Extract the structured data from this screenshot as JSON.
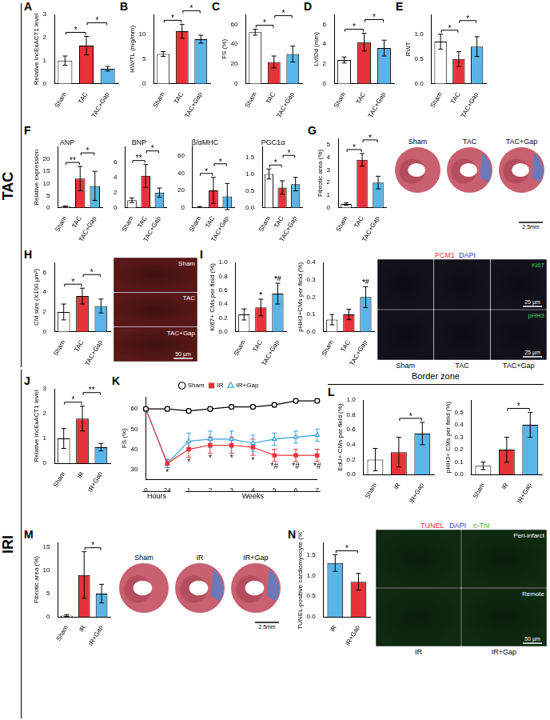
{
  "side_labels": [
    "TAC",
    "IRI"
  ],
  "group_labels": [
    "Border zone"
  ],
  "chart_data": [
    {
      "type": "bar",
      "panel": "A",
      "ylabel": "Relative lncExACT1 level",
      "categories": [
        "Sham",
        "TAC",
        "TAC+Gap"
      ],
      "values": [
        1.0,
        1.65,
        0.65
      ],
      "errors": [
        0.2,
        0.4,
        0.1
      ],
      "colors": [
        "#ffffff",
        "#e8323a",
        "#5ab4e6"
      ],
      "ylim": [
        0,
        3
      ],
      "yticks": [
        0,
        1,
        2,
        3
      ],
      "grid": false,
      "significance": [
        {
          "from": 0,
          "to": 1,
          "label": "*"
        },
        {
          "from": 1,
          "to": 2,
          "label": "*"
        }
      ]
    },
    {
      "type": "bar",
      "panel": "B",
      "ylabel": "HW/TL (mg/mm)",
      "categories": [
        "Sham",
        "TAC",
        "TAC+Gap"
      ],
      "values": [
        6.0,
        10.6,
        9.0
      ],
      "errors": [
        0.5,
        1.4,
        0.8
      ],
      "colors": [
        "#ffffff",
        "#e8323a",
        "#5ab4e6"
      ],
      "ylim": [
        0,
        14
      ],
      "yticks": [
        0,
        5,
        10
      ],
      "grid": false,
      "significance": [
        {
          "from": 0,
          "to": 1,
          "label": "*"
        },
        {
          "from": 1,
          "to": 2,
          "label": "*"
        }
      ]
    },
    {
      "type": "bar",
      "panel": "C",
      "ylabel": "FS (%)",
      "categories": [
        "Sham",
        "TAC",
        "TAC+Gap"
      ],
      "values": [
        52,
        22,
        30
      ],
      "errors": [
        3,
        6,
        8
      ],
      "colors": [
        "#ffffff",
        "#e8323a",
        "#5ab4e6"
      ],
      "ylim": [
        0,
        70
      ],
      "yticks": [
        0,
        20,
        40,
        60
      ],
      "grid": false,
      "significance": [
        {
          "from": 0,
          "to": 1,
          "label": "*"
        },
        {
          "from": 1,
          "to": 2,
          "label": "*"
        }
      ]
    },
    {
      "type": "bar",
      "panel": "D",
      "ylabel": "LVIDd (mm)",
      "categories": [
        "Sham",
        "TAC",
        "TAC+Gap"
      ],
      "values": [
        2.4,
        4.2,
        3.6
      ],
      "errors": [
        0.3,
        0.9,
        0.8
      ],
      "colors": [
        "#ffffff",
        "#e8323a",
        "#5ab4e6"
      ],
      "ylim": [
        0,
        7
      ],
      "yticks": [
        0,
        2,
        4,
        6
      ],
      "grid": false,
      "significance": [
        {
          "from": 0,
          "to": 1,
          "label": "*"
        },
        {
          "from": 1,
          "to": 2,
          "label": "*"
        }
      ]
    },
    {
      "type": "bar",
      "panel": "E",
      "ylabel": "RWT",
      "categories": [
        "Sham",
        "TAC",
        "TAC+Gap"
      ],
      "values": [
        0.85,
        0.5,
        0.75
      ],
      "errors": [
        0.15,
        0.15,
        0.2
      ],
      "colors": [
        "#ffffff",
        "#e8323a",
        "#5ab4e6"
      ],
      "ylim": [
        0,
        1.4
      ],
      "yticks": [
        {
          "value": 0,
          "label": "0.0"
        },
        0.5,
        {
          "value": 1,
          "label": "1.0"
        }
      ],
      "grid": false,
      "significance": [
        {
          "from": 0,
          "to": 1,
          "label": "*"
        },
        {
          "from": 1,
          "to": 2,
          "label": "*"
        }
      ]
    },
    {
      "type": "bar",
      "panel": "F",
      "title": "ANP",
      "ylabel": "Relative expression",
      "categories": [
        "Sham",
        "TAC",
        "TAC+Gap"
      ],
      "values": [
        0.5,
        12,
        9
      ],
      "errors": [
        0.3,
        5,
        6
      ],
      "colors": [
        "#ffffff",
        "#e8323a",
        "#5ab4e6"
      ],
      "ylim": [
        0,
        25
      ],
      "yticks": [
        0,
        5,
        10,
        15,
        20
      ],
      "grid": false,
      "significance": [
        {
          "from": 0,
          "to": 1,
          "label": "**"
        },
        {
          "from": 1,
          "to": 2,
          "label": "*"
        }
      ]
    },
    {
      "type": "bar",
      "title": "BNP",
      "categories": [
        "Sham",
        "TAC",
        "TAC+Gap"
      ],
      "values": [
        1.0,
        4.2,
        2.0
      ],
      "errors": [
        0.3,
        1.5,
        0.6
      ],
      "colors": [
        "#ffffff",
        "#e8323a",
        "#5ab4e6"
      ],
      "ylim": [
        0,
        8
      ],
      "yticks": [
        0,
        2,
        4,
        6
      ],
      "grid": false,
      "significance": [
        {
          "from": 0,
          "to": 1,
          "label": "**"
        },
        {
          "from": 1,
          "to": 2,
          "label": "*"
        }
      ]
    },
    {
      "type": "bar",
      "title": "β/αMHC",
      "categories": [
        "Sham",
        "TAC",
        "TAC+Gap"
      ],
      "values": [
        1,
        20,
        13
      ],
      "errors": [
        0.5,
        15,
        15
      ],
      "colors": [
        "#ffffff",
        "#e8323a",
        "#5ab4e6"
      ],
      "ylim": [
        0,
        70
      ],
      "yticks": [
        0,
        20,
        40,
        60
      ],
      "grid": false,
      "significance": [
        {
          "from": 0,
          "to": 1,
          "label": "*"
        },
        {
          "from": 1,
          "to": 2,
          "label": "*"
        }
      ]
    },
    {
      "type": "bar",
      "title": "PGC1α",
      "categories": [
        "Sham",
        "TAC",
        "TAC+Gap"
      ],
      "values": [
        1.0,
        0.6,
        0.7
      ],
      "errors": [
        0.15,
        0.2,
        0.2
      ],
      "colors": [
        "#ffffff",
        "#e8323a",
        "#5ab4e6"
      ],
      "ylim": [
        0,
        1.8
      ],
      "yticks": [
        {
          "value": 0,
          "label": "0.0"
        },
        0.5,
        {
          "value": 1,
          "label": "1.0"
        },
        1.5
      ],
      "grid": false,
      "significance": [
        {
          "from": 0,
          "to": 1,
          "label": "*"
        },
        {
          "from": 1,
          "to": 2,
          "label": "*"
        }
      ]
    },
    {
      "type": "bar",
      "panel": "G",
      "ylabel": "Fibrotic area (%)",
      "categories": [
        "Sham",
        "TAC",
        "TAC+Gap"
      ],
      "values": [
        0.3,
        3.8,
        2.0
      ],
      "errors": [
        0.1,
        0.5,
        0.5
      ],
      "colors": [
        "#ffffff",
        "#e8323a",
        "#5ab4e6"
      ],
      "ylim": [
        0,
        5.5
      ],
      "yticks": [
        0,
        1,
        2,
        3,
        4,
        5
      ],
      "grid": false,
      "significance": [
        {
          "from": 0,
          "to": 1,
          "label": "*"
        },
        {
          "from": 1,
          "to": 2,
          "label": "*"
        }
      ]
    },
    {
      "type": "bar",
      "panel": "H",
      "ylabel": "CM size (X100 µm²)",
      "categories": [
        "Sham",
        "TAC",
        "TAC+Gap"
      ],
      "values": [
        2.0,
        3.6,
        2.6
      ],
      "errors": [
        0.8,
        0.8,
        0.7
      ],
      "colors": [
        "#ffffff",
        "#e8323a",
        "#5ab4e6"
      ],
      "ylim": [
        0,
        7
      ],
      "yticks": [
        0,
        2,
        4,
        6
      ],
      "grid": false,
      "significance": [
        {
          "from": 0,
          "to": 1,
          "label": "*"
        },
        {
          "from": 1,
          "to": 2,
          "label": "*"
        }
      ]
    },
    {
      "type": "bar",
      "panel": "I",
      "ylabel": "Ki67+ CMs per field (%)",
      "categories": [
        "Sham",
        "TAC",
        "TAC+Gap"
      ],
      "values": [
        0.25,
        0.35,
        0.55
      ],
      "errors": [
        0.08,
        0.12,
        0.15
      ],
      "colors": [
        "#ffffff",
        "#e8323a",
        "#5ab4e6"
      ],
      "ylim": [
        0,
        1.0
      ],
      "yticks": [
        {
          "value": 0,
          "label": "0.0"
        },
        0.2,
        0.4,
        0.6,
        0.8,
        {
          "value": 1,
          "label": "1.0"
        }
      ],
      "grid": false,
      "bar_labels": [
        null,
        "*",
        "*#"
      ]
    },
    {
      "type": "bar",
      "ylabel": "pHH3+CMs per field (%)",
      "categories": [
        "Sham",
        "TAC",
        "TAC+Gap"
      ],
      "values": [
        0.07,
        0.1,
        0.2
      ],
      "errors": [
        0.03,
        0.03,
        0.06
      ],
      "colors": [
        "#ffffff",
        "#e8323a",
        "#5ab4e6"
      ],
      "ylim": [
        0,
        0.4
      ],
      "yticks": [
        {
          "value": 0,
          "label": "0.0"
        },
        0.1,
        0.2,
        0.3,
        0.4
      ],
      "grid": false,
      "bar_labels": [
        null,
        null,
        "*#"
      ]
    },
    {
      "type": "bar",
      "panel": "J",
      "ylabel": "Relative lncExACT1 level",
      "categories": [
        "Sham",
        "IR",
        "IR+Gap"
      ],
      "values": [
        1.0,
        1.8,
        0.65
      ],
      "errors": [
        0.4,
        0.5,
        0.15
      ],
      "colors": [
        "#ffffff",
        "#e8323a",
        "#5ab4e6"
      ],
      "ylim": [
        0,
        3
      ],
      "yticks": [
        0,
        1,
        2,
        3
      ],
      "grid": false,
      "significance": [
        {
          "from": 0,
          "to": 1,
          "label": "*"
        },
        {
          "from": 1,
          "to": 2,
          "label": "**"
        }
      ]
    },
    {
      "type": "line",
      "panel": "K",
      "ylabel": "FS (%)",
      "categories": [
        "0",
        "24",
        "1",
        "2",
        "3",
        "4",
        "5",
        "6",
        "7"
      ],
      "x_groups": [
        {
          "label": "Hours",
          "from": 0,
          "to": 1
        },
        {
          "label": "Weeks",
          "from": 2,
          "to": 8
        }
      ],
      "series": [
        {
          "name": "Sham",
          "color": "#000000",
          "marker": "circle_open",
          "values": [
            60,
            60,
            59,
            60,
            61,
            61,
            62,
            64,
            64
          ],
          "errors": [
            1,
            1,
            1,
            1,
            1,
            1,
            1,
            1,
            1
          ]
        },
        {
          "name": "IR",
          "color": "#e8323a",
          "marker": "square",
          "values": [
            60,
            33,
            40,
            42,
            42,
            41,
            37,
            37,
            37
          ],
          "errors": [
            1,
            2,
            4,
            4,
            4,
            4,
            3,
            3,
            3
          ]
        },
        {
          "name": "IR+Gap",
          "color": "#3aa0d8",
          "marker": "triangle_open",
          "values": [
            60,
            33,
            44,
            45,
            45,
            43,
            45,
            46,
            47
          ],
          "errors": [
            1,
            2,
            4,
            4,
            4,
            4,
            3,
            3,
            3
          ]
        }
      ],
      "annotations": [
        {
          "index": 1,
          "text": "*"
        },
        {
          "index": 2,
          "text": "*"
        },
        {
          "index": 3,
          "text": "*"
        },
        {
          "index": 4,
          "text": "*"
        },
        {
          "index": 5,
          "text": "*"
        },
        {
          "index": 6,
          "text": "*#"
        },
        {
          "index": 7,
          "text": "*#"
        },
        {
          "index": 8,
          "text": "*#"
        }
      ],
      "ylim": [
        25,
        66
      ],
      "yticks": [
        30,
        40,
        50,
        60
      ],
      "grid": false,
      "legend": "top"
    },
    {
      "type": "bar",
      "panel": "L",
      "ylabel": "EdU+ CMs per field (%)",
      "categories": [
        "Sham",
        "IR",
        "IR+Gap"
      ],
      "values": [
        0.2,
        0.3,
        0.55
      ],
      "errors": [
        0.15,
        0.2,
        0.15
      ],
      "colors": [
        "#ffffff",
        "#e8323a",
        "#5ab4e6"
      ],
      "ylim": [
        0,
        1.0
      ],
      "yticks": [
        {
          "value": 0,
          "label": "0.0"
        },
        0.2,
        0.4,
        0.6,
        0.8,
        {
          "value": 1,
          "label": "1.0"
        }
      ],
      "grid": false,
      "significance": [
        {
          "from": 1,
          "to": 2,
          "label": "*"
        }
      ]
    },
    {
      "type": "bar",
      "ylabel": "pHH3+ CMs per field (%)",
      "categories": [
        "Sham",
        "IR",
        "IR+Gap"
      ],
      "values": [
        0.07,
        0.2,
        0.4
      ],
      "errors": [
        0.03,
        0.1,
        0.1
      ],
      "colors": [
        "#ffffff",
        "#e8323a",
        "#5ab4e6"
      ],
      "ylim": [
        0,
        0.6
      ],
      "yticks": [
        {
          "value": 0,
          "label": "0.0"
        },
        0.1,
        0.2,
        0.3,
        0.4,
        0.5
      ],
      "grid": false,
      "significance": [
        {
          "from": 1,
          "to": 2,
          "label": "*"
        }
      ]
    },
    {
      "type": "bar",
      "panel": "M",
      "ylabel": "Fibrotic area (%)",
      "categories": [
        "Sham",
        "IR",
        "IR+Gap"
      ],
      "values": [
        0.3,
        9,
        5
      ],
      "errors": [
        0.2,
        5,
        2
      ],
      "colors": [
        "#ffffff",
        "#e8323a",
        "#5ab4e6"
      ],
      "ylim": [
        0,
        16
      ],
      "yticks": [
        0,
        5,
        10,
        15
      ],
      "grid": false,
      "significance": [
        {
          "from": 1,
          "to": 2,
          "label": "*"
        }
      ]
    },
    {
      "type": "bar",
      "panel": "N",
      "ylabel": "TUNEL-positive cardiomyocyte (%)",
      "categories": [
        "IR",
        "IR+Gap"
      ],
      "values": [
        1.3,
        0.85
      ],
      "errors": [
        0.2,
        0.2
      ],
      "colors": [
        "#5ab4e6",
        "#e8323a"
      ],
      "ylim": [
        0,
        1.8
      ],
      "yticks": [
        {
          "value": 0,
          "label": "0.0"
        },
        0.5,
        {
          "value": 1,
          "label": "1.0"
        },
        1.5
      ],
      "grid": false,
      "significance": [
        {
          "from": 0,
          "to": 1,
          "label": "*"
        }
      ]
    }
  ],
  "images": [
    {
      "style": "section",
      "columns": [
        "Sham",
        "TAC",
        "TAC+Gap"
      ],
      "scale_bar": "2.5mm"
    },
    {
      "style": "fluor",
      "color": "#5a1818",
      "rows": [
        {
          "text": "Sham",
          "color": "#ffffff"
        },
        {
          "text": "TAC",
          "color": "#ffffff"
        },
        {
          "text": "TAC+Gap",
          "color": "#ffffff"
        }
      ],
      "scale_bars": [
        {
          "row": 2,
          "text": "50 µm"
        }
      ]
    },
    {
      "style": "fluor",
      "color": "#12121c",
      "header": [
        {
          "text": "PCM1",
          "color": "#e8323a"
        },
        {
          "text": "DAPI",
          "color": "#2b3fd0"
        }
      ],
      "columns": [
        "Sham",
        "TAC",
        "TAC+Gap"
      ],
      "rows": [
        {
          "text": "Ki67",
          "color": "#39d353"
        },
        {
          "text": "pHH3",
          "color": "#39d353"
        }
      ],
      "scale_bars": [
        {
          "row": 0,
          "text": "25 µm"
        },
        {
          "row": 1,
          "text": "25 µm"
        }
      ]
    },
    {
      "style": "section",
      "columns": [
        "Sham",
        "IR",
        "IR+Gap"
      ],
      "scale_bar": "2.5mm"
    },
    {
      "style": "fluor",
      "color": "#0f2a10",
      "header": [
        {
          "text": "TUNEL",
          "color": "#e8323a"
        },
        {
          "text": "DAPI",
          "color": "#2b3fd0"
        },
        {
          "text": "c-TnI",
          "color": "#2faa3a"
        }
      ],
      "columns": [
        "IR",
        "IR+Gap"
      ],
      "rows": [
        {
          "text": "Peri-infarct",
          "color": "#ffffff"
        },
        {
          "text": "Remote",
          "color": "#ffffff"
        }
      ],
      "scale_bars": [
        {
          "row": 1,
          "text": "50 µm"
        }
      ]
    }
  ]
}
